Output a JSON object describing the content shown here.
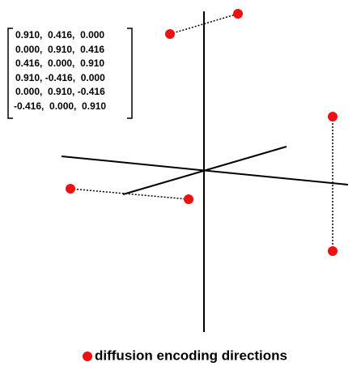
{
  "matrix": {
    "rows": [
      "0.910,  0.416,  0.000",
      "0.000,  0.910,  0.416",
      "0.416,  0.000,  0.910",
      "0.910, -0.416,  0.000",
      "0.000,  0.910, -0.416",
      "-0.416,  0.000,  0.910"
    ]
  },
  "legend": {
    "label": "diffusion encoding directions"
  }
}
